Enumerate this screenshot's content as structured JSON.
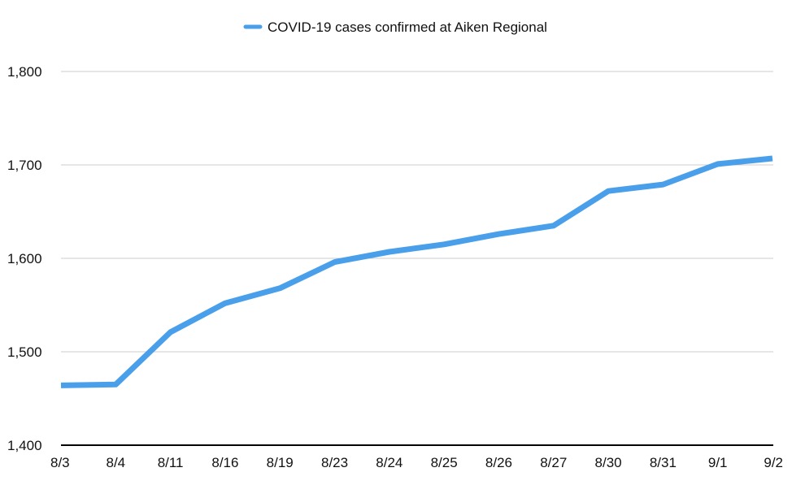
{
  "chart_data": {
    "type": "line",
    "title": "",
    "xlabel": "",
    "ylabel": "",
    "categories": [
      "8/3",
      "8/4",
      "8/11",
      "8/16",
      "8/19",
      "8/23",
      "8/24",
      "8/25",
      "8/26",
      "8/27",
      "8/30",
      "8/31",
      "9/1",
      "9/2"
    ],
    "series": [
      {
        "name": "COVID-19 cases confirmed at Aiken Regional",
        "color": "#4a9fea",
        "values": [
          1464,
          1465,
          1521,
          1552,
          1568,
          1596,
          1607,
          1615,
          1626,
          1635,
          1672,
          1679,
          1701,
          1707
        ]
      }
    ],
    "ylim": [
      1400,
      1800
    ],
    "yticks": [
      1400,
      1500,
      1600,
      1700,
      1800
    ],
    "ytick_labels": [
      "1,400",
      "1,500",
      "1,600",
      "1,700",
      "1,800"
    ],
    "grid": true,
    "legend_position": "top-center",
    "gridline_color": "#cccccc",
    "axis_color": "#000000"
  }
}
